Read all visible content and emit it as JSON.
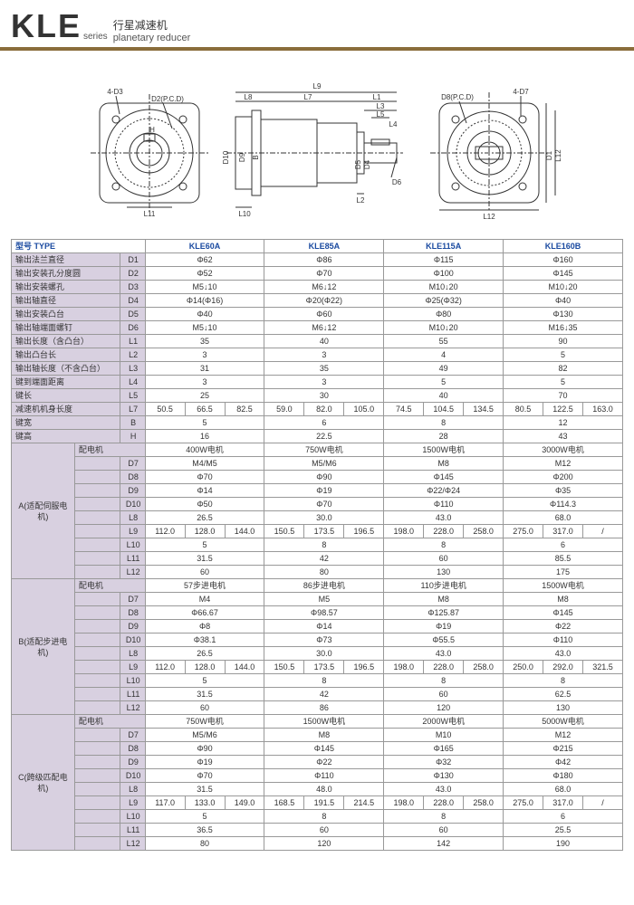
{
  "header": {
    "kle": "KLE",
    "series": "series",
    "cn": "行星减速机",
    "en": "planetary reducer"
  },
  "colHeaders": {
    "type": "型号 TYPE",
    "m1": "KLE60A",
    "m2": "KLE85A",
    "m3": "KLE115A",
    "m4": "KLE160B"
  },
  "rows": [
    {
      "label": "输出法兰直径",
      "p": "D1",
      "v": [
        "Φ62",
        "Φ86",
        "Φ115",
        "Φ160"
      ]
    },
    {
      "label": "输出安装孔分度圆",
      "p": "D2",
      "v": [
        "Φ52",
        "Φ70",
        "Φ100",
        "Φ145"
      ]
    },
    {
      "label": "输出安装螺孔",
      "p": "D3",
      "v": [
        "M5↓10",
        "M6↓12",
        "M10↓20",
        "M10↓20"
      ]
    },
    {
      "label": "输出轴直径",
      "p": "D4",
      "v": [
        "Φ14(Φ16)",
        "Φ20(Φ22)",
        "Φ25(Φ32)",
        "Φ40"
      ]
    },
    {
      "label": "输出安装凸台",
      "p": "D5",
      "v": [
        "Φ40",
        "Φ60",
        "Φ80",
        "Φ130"
      ]
    },
    {
      "label": "输出轴端面螺钉",
      "p": "D6",
      "v": [
        "M5↓10",
        "M6↓12",
        "M10↓20",
        "M16↓35"
      ]
    },
    {
      "label": "输出长度（含凸台）",
      "p": "L1",
      "v": [
        "35",
        "40",
        "55",
        "90"
      ]
    },
    {
      "label": "输出凸台长",
      "p": "L2",
      "v": [
        "3",
        "3",
        "4",
        "5"
      ]
    },
    {
      "label": "输出轴长度（不含凸台）",
      "p": "L3",
      "v": [
        "31",
        "35",
        "49",
        "82"
      ]
    },
    {
      "label": "键到端面距离",
      "p": "L4",
      "v": [
        "3",
        "3",
        "5",
        "5"
      ]
    },
    {
      "label": "键长",
      "p": "L5",
      "v": [
        "25",
        "30",
        "40",
        "70"
      ]
    }
  ],
  "L7": {
    "label": "减速机机身长度",
    "p": "L7",
    "v": [
      "50.5",
      "66.5",
      "82.5",
      "59.0",
      "82.0",
      "105.0",
      "74.5",
      "104.5",
      "134.5",
      "80.5",
      "122.5",
      "163.0"
    ]
  },
  "B": {
    "label": "键宽",
    "p": "B",
    "v": [
      "5",
      "6",
      "8",
      "12"
    ]
  },
  "H": {
    "label": "键高",
    "p": "H",
    "v": [
      "16",
      "22.5",
      "28",
      "43"
    ]
  },
  "sections": [
    {
      "name": "A(适配伺服电机)",
      "motor": {
        "label": "配电机",
        "v": [
          "400W电机",
          "750W电机",
          "1500W电机",
          "3000W电机"
        ]
      },
      "rows": [
        {
          "p": "D7",
          "v": [
            "M4/M5",
            "M5/M6",
            "M8",
            "M12"
          ]
        },
        {
          "p": "D8",
          "v": [
            "Φ70",
            "Φ90",
            "Φ145",
            "Φ200"
          ]
        },
        {
          "p": "D9",
          "v": [
            "Φ14",
            "Φ19",
            "Φ22/Φ24",
            "Φ35"
          ]
        },
        {
          "p": "D10",
          "v": [
            "Φ50",
            "Φ70",
            "Φ110",
            "Φ114.3"
          ]
        },
        {
          "p": "L8",
          "v": [
            "26.5",
            "30.0",
            "43.0",
            "68.0"
          ]
        }
      ],
      "L9": {
        "p": "L9",
        "v": [
          "112.0",
          "128.0",
          "144.0",
          "150.5",
          "173.5",
          "196.5",
          "198.0",
          "228.0",
          "258.0",
          "275.0",
          "317.0",
          "/"
        ]
      },
      "tail": [
        {
          "p": "L10",
          "v": [
            "5",
            "8",
            "8",
            "6"
          ]
        },
        {
          "p": "L11",
          "v": [
            "31.5",
            "42",
            "60",
            "85.5"
          ]
        },
        {
          "p": "L12",
          "v": [
            "60",
            "80",
            "130",
            "175"
          ]
        }
      ]
    },
    {
      "name": "B(适配步进电机)",
      "motor": {
        "label": "配电机",
        "v": [
          "57步进电机",
          "86步进电机",
          "110步进电机",
          "1500W电机"
        ]
      },
      "rows": [
        {
          "p": "D7",
          "v": [
            "M4",
            "M5",
            "M8",
            "M8"
          ]
        },
        {
          "p": "D8",
          "v": [
            "Φ66.67",
            "Φ98.57",
            "Φ125.87",
            "Φ145"
          ]
        },
        {
          "p": "D9",
          "v": [
            "Φ8",
            "Φ14",
            "Φ19",
            "Φ22"
          ]
        },
        {
          "p": "D10",
          "v": [
            "Φ38.1",
            "Φ73",
            "Φ55.5",
            "Φ110"
          ]
        },
        {
          "p": "L8",
          "v": [
            "26.5",
            "30.0",
            "43.0",
            "43.0"
          ]
        }
      ],
      "L9": {
        "p": "L9",
        "v": [
          "112.0",
          "128.0",
          "144.0",
          "150.5",
          "173.5",
          "196.5",
          "198.0",
          "228.0",
          "258.0",
          "250.0",
          "292.0",
          "321.5"
        ]
      },
      "tail": [
        {
          "p": "L10",
          "v": [
            "5",
            "8",
            "8",
            "8"
          ]
        },
        {
          "p": "L11",
          "v": [
            "31.5",
            "42",
            "60",
            "62.5"
          ]
        },
        {
          "p": "L12",
          "v": [
            "60",
            "86",
            "120",
            "130"
          ]
        }
      ]
    },
    {
      "name": "C(跨级匹配电机)",
      "motor": {
        "label": "配电机",
        "v": [
          "750W电机",
          "1500W电机",
          "2000W电机",
          "5000W电机"
        ]
      },
      "rows": [
        {
          "p": "D7",
          "v": [
            "M5/M6",
            "M8",
            "M10",
            "M12"
          ]
        },
        {
          "p": "D8",
          "v": [
            "Φ90",
            "Φ145",
            "Φ165",
            "Φ215"
          ]
        },
        {
          "p": "D9",
          "v": [
            "Φ19",
            "Φ22",
            "Φ32",
            "Φ42"
          ]
        },
        {
          "p": "D10",
          "v": [
            "Φ70",
            "Φ110",
            "Φ130",
            "Φ180"
          ]
        },
        {
          "p": "L8",
          "v": [
            "31.5",
            "48.0",
            "43.0",
            "68.0"
          ]
        }
      ],
      "L9": {
        "p": "L9",
        "v": [
          "117.0",
          "133.0",
          "149.0",
          "168.5",
          "191.5",
          "214.5",
          "198.0",
          "228.0",
          "258.0",
          "275.0",
          "317.0",
          "/"
        ]
      },
      "tail": [
        {
          "p": "L10",
          "v": [
            "5",
            "8",
            "8",
            "6"
          ]
        },
        {
          "p": "L11",
          "v": [
            "36.5",
            "60",
            "60",
            "25.5"
          ]
        },
        {
          "p": "L12",
          "v": [
            "80",
            "120",
            "142",
            "190"
          ]
        }
      ]
    }
  ],
  "diagramLabels": {
    "d3": "4-D3",
    "d2": "D2(P.C.D)",
    "h": "H",
    "l11": "L11",
    "l9": "L9",
    "l8": "L8",
    "l7": "L7",
    "l1": "L1",
    "l3": "L3",
    "l5": "L5",
    "l4": "L4",
    "l2": "L2",
    "d6": "D6",
    "d10": "D10",
    "d9": "D9",
    "b": "B",
    "d5": "D5",
    "d4": "D4",
    "d7": "4-D7",
    "d8": "D8(P.C.D)",
    "d1": "D1",
    "l12": "L12",
    "l10": "L10"
  }
}
